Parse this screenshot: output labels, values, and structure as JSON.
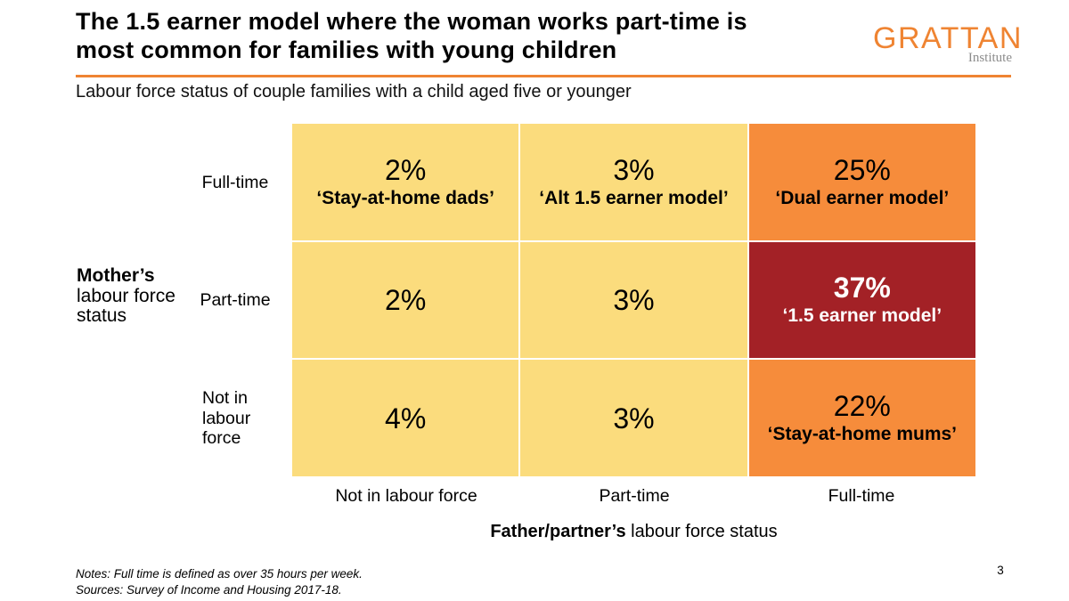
{
  "header": {
    "title_line1": "The 1.5 earner model where the woman works part-time is",
    "title_line2": "most common for families with young children",
    "subtitle": "Labour force status of couple families with a child aged five or younger",
    "logo_text": "GRATTAN",
    "logo_subtext": "Institute"
  },
  "colors": {
    "cell_yellow": "#FBDC7D",
    "cell_orange": "#F68C3B",
    "cell_red": "#A32126",
    "brand_orange": "#EF8432",
    "logo_gray": "#8C8C8C",
    "white_text": "#FFFFFF"
  },
  "chart_data": {
    "type": "heatmap",
    "title": "The 1.5 earner model where the woman works part-time is most common for families with young children",
    "subtitle": "Labour force status of couple families with a child aged five or younger",
    "unit": "%",
    "x_axis": {
      "label": "Father/partner’s labour force status",
      "label_bold_part": "Father/partner’s",
      "label_rest": " labour force status",
      "categories": [
        "Not in labour force",
        "Part-time",
        "Full-time"
      ]
    },
    "y_axis": {
      "label": "Mother’s labour force status",
      "title_line1": "Mother’s",
      "title_line2": "labour force",
      "title_line3": "status",
      "categories": [
        "Full-time",
        "Part-time",
        "Not in labour force"
      ],
      "cat_display": [
        [
          "Full-time"
        ],
        [
          "Part-time"
        ],
        [
          "Not in",
          "labour",
          "force"
        ]
      ]
    },
    "cells": [
      [
        {
          "row": "Full-time",
          "col": "Not in labour force",
          "value": "2%",
          "number": 2,
          "label": "‘Stay-at-home dads’",
          "color": "#FBDC7D"
        },
        {
          "row": "Full-time",
          "col": "Part-time",
          "value": "3%",
          "number": 3,
          "label": "‘Alt 1.5 earner model’",
          "color": "#FBDC7D"
        },
        {
          "row": "Full-time",
          "col": "Full-time",
          "value": "25%",
          "number": 25,
          "label": "‘Dual earner model’",
          "color": "#F68C3B"
        }
      ],
      [
        {
          "row": "Part-time",
          "col": "Not in labour force",
          "value": "2%",
          "number": 2,
          "label": "",
          "color": "#FBDC7D"
        },
        {
          "row": "Part-time",
          "col": "Part-time",
          "value": "3%",
          "number": 3,
          "label": "",
          "color": "#FBDC7D"
        },
        {
          "row": "Part-time",
          "col": "Full-time",
          "value": "37%",
          "number": 37,
          "label": "‘1.5 earner model’",
          "color": "#A32126",
          "text_color": "#FFFFFF"
        }
      ],
      [
        {
          "row": "Not in labour force",
          "col": "Not in labour force",
          "value": "4%",
          "number": 4,
          "label": "",
          "color": "#FBDC7D"
        },
        {
          "row": "Not in labour force",
          "col": "Part-time",
          "value": "3%",
          "number": 3,
          "label": "",
          "color": "#FBDC7D"
        },
        {
          "row": "Not in labour force",
          "col": "Full-time",
          "value": "22%",
          "number": 22,
          "label": "‘Stay-at-home mums’",
          "color": "#F68C3B"
        }
      ]
    ]
  },
  "footer": {
    "notes": "Notes: Full time is defined as over 35 hours per week.",
    "sources": "Sources: Survey of Income and Housing 2017-18.",
    "page_number": "3"
  }
}
